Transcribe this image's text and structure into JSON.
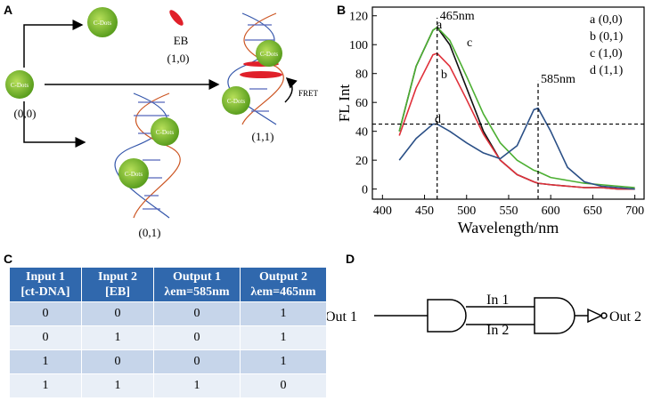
{
  "panel_labels": [
    "A",
    "B",
    "C",
    "D"
  ],
  "panel_a": {
    "dot_label": "C-Dots",
    "eb": "EB",
    "states": [
      "(0,0)",
      "(1,0)",
      "(0,1)",
      "(1,1)"
    ],
    "fret": "FRET"
  },
  "chart_data": {
    "type": "line",
    "xlabel": "Wavelength/nm",
    "ylabel": "FL Int",
    "x": [
      420,
      440,
      460,
      465,
      480,
      500,
      520,
      540,
      560,
      580,
      585,
      600,
      620,
      640,
      660,
      680,
      700
    ],
    "series": [
      {
        "name": "a (0,0)",
        "label": "a",
        "color": "#111111",
        "values": [
          40,
          85,
          110,
          112,
          100,
          70,
          40,
          20,
          10,
          5,
          4,
          3,
          2,
          1,
          1,
          0,
          0
        ]
      },
      {
        "name": "b (0,1)",
        "label": "b",
        "color": "#e0303a",
        "values": [
          37,
          70,
          93,
          94,
          85,
          62,
          38,
          20,
          10,
          5,
          4,
          3,
          2,
          1,
          1,
          0,
          0
        ]
      },
      {
        "name": "c (1,0)",
        "label": "c",
        "color": "#4caf32",
        "values": [
          40,
          85,
          110,
          112,
          103,
          78,
          52,
          32,
          20,
          13,
          12,
          8,
          6,
          4,
          3,
          2,
          1
        ]
      },
      {
        "name": "d (1,1)",
        "label": "d",
        "color": "#2a4f86",
        "values": [
          20,
          35,
          45,
          45,
          40,
          32,
          25,
          21,
          30,
          55,
          56,
          40,
          15,
          5,
          2,
          1,
          0
        ]
      }
    ],
    "xlim": [
      388,
      711
    ],
    "ylim": [
      -7,
      126
    ],
    "xticks": [
      400,
      450,
      500,
      550,
      600,
      650,
      700
    ],
    "yticks": [
      0,
      20,
      40,
      60,
      80,
      100,
      120
    ],
    "vlines": [
      465,
      585
    ],
    "vline_labels": [
      "465nm",
      "585nm"
    ],
    "hline": 45
  },
  "table": {
    "header": [
      [
        "Input 1",
        "[ct-DNA]"
      ],
      [
        "Input 2",
        "[EB]"
      ],
      [
        "Output 1",
        "λem=585nm"
      ],
      [
        "Output 2",
        "λem=465nm"
      ]
    ],
    "rows": [
      [
        0,
        0,
        0,
        1
      ],
      [
        0,
        1,
        0,
        1
      ],
      [
        1,
        0,
        0,
        1
      ],
      [
        1,
        1,
        1,
        0
      ]
    ]
  },
  "logic": {
    "out1": "Out 1",
    "in1": "In 1",
    "in2": "In 2",
    "out2": "Out 2"
  }
}
